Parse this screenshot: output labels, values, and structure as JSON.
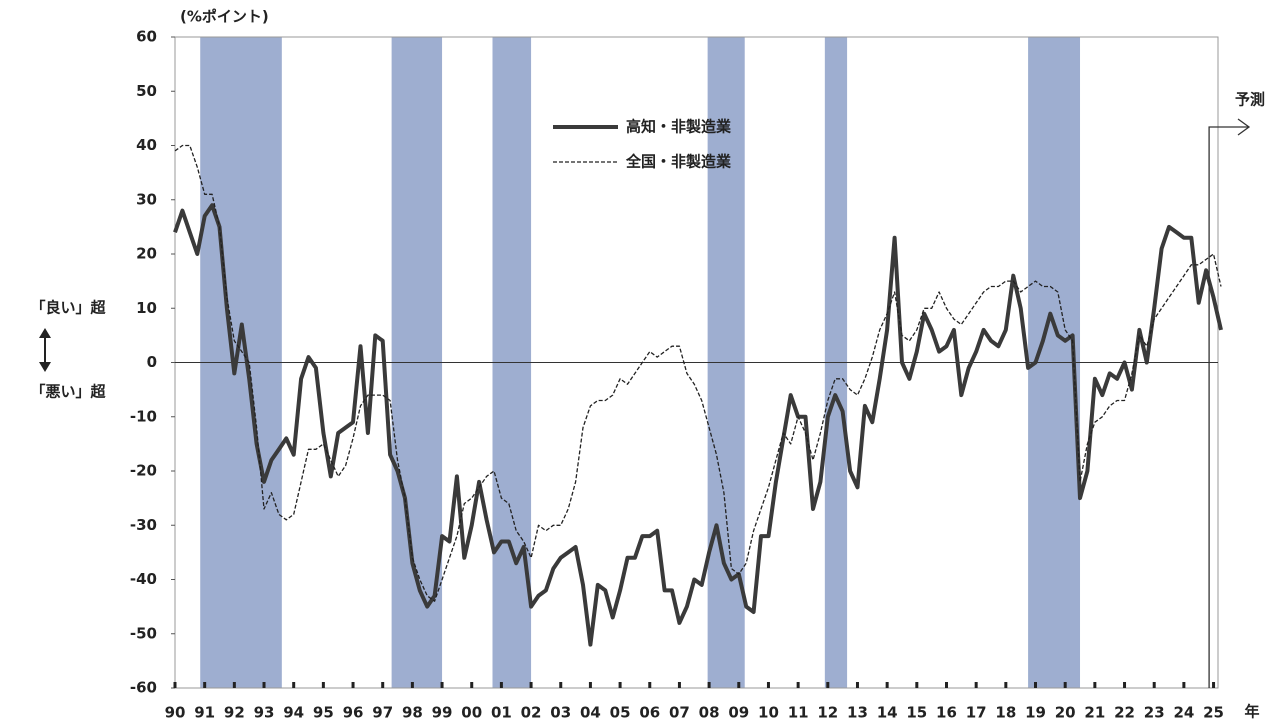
{
  "chart_data": {
    "type": "line",
    "y_unit": "(%ポイント)",
    "upper_label": "「良い」超",
    "lower_label": "「悪い」超",
    "x_unit": "年",
    "forecast": {
      "label": "予測",
      "x": 2024.85
    },
    "xlim": [
      1990,
      2025
    ],
    "xticks": [
      {
        "value": 1990,
        "label": "90"
      },
      {
        "value": 1991,
        "label": "91"
      },
      {
        "value": 1992,
        "label": "92"
      },
      {
        "value": 1993,
        "label": "93"
      },
      {
        "value": 1994,
        "label": "94"
      },
      {
        "value": 1995,
        "label": "95"
      },
      {
        "value": 1996,
        "label": "96"
      },
      {
        "value": 1997,
        "label": "97"
      },
      {
        "value": 1998,
        "label": "98"
      },
      {
        "value": 1999,
        "label": "99"
      },
      {
        "value": 2000,
        "label": "00"
      },
      {
        "value": 2001,
        "label": "01"
      },
      {
        "value": 2002,
        "label": "02"
      },
      {
        "value": 2003,
        "label": "03"
      },
      {
        "value": 2004,
        "label": "04"
      },
      {
        "value": 2005,
        "label": "05"
      },
      {
        "value": 2006,
        "label": "06"
      },
      {
        "value": 2007,
        "label": "07"
      },
      {
        "value": 2008,
        "label": "08"
      },
      {
        "value": 2009,
        "label": "09"
      },
      {
        "value": 2010,
        "label": "10"
      },
      {
        "value": 2011,
        "label": "11"
      },
      {
        "value": 2012,
        "label": "12"
      },
      {
        "value": 2013,
        "label": "13"
      },
      {
        "value": 2014,
        "label": "14"
      },
      {
        "value": 2015,
        "label": "15"
      },
      {
        "value": 2016,
        "label": "16"
      },
      {
        "value": 2017,
        "label": "17"
      },
      {
        "value": 2018,
        "label": "18"
      },
      {
        "value": 2019,
        "label": "19"
      },
      {
        "value": 2020,
        "label": "20"
      },
      {
        "value": 2021,
        "label": "21"
      },
      {
        "value": 2022,
        "label": "22"
      },
      {
        "value": 2023,
        "label": "23"
      },
      {
        "value": 2024,
        "label": "24"
      },
      {
        "value": 2025,
        "label": "25"
      }
    ],
    "ylim": [
      -60,
      60
    ],
    "yticks": [
      60,
      50,
      40,
      30,
      20,
      10,
      0,
      -10,
      -20,
      -30,
      -40,
      -50,
      -60
    ],
    "shaded_periods": [
      [
        1990.85,
        1993.6
      ],
      [
        1997.3,
        1999.0
      ],
      [
        2000.7,
        2002.0
      ],
      [
        2007.95,
        2009.2
      ],
      [
        2011.9,
        2012.65
      ],
      [
        2018.75,
        2020.5
      ]
    ],
    "shade_color": "#9eaed0",
    "x": [
      1990,
      1990.25,
      1990.5,
      1990.75,
      1991,
      1991.25,
      1991.5,
      1991.75,
      1992,
      1992.25,
      1992.5,
      1992.75,
      1993,
      1993.25,
      1993.5,
      1993.75,
      1994,
      1994.25,
      1994.5,
      1994.75,
      1995,
      1995.25,
      1995.5,
      1995.75,
      1996,
      1996.25,
      1996.5,
      1996.75,
      1997,
      1997.25,
      1997.5,
      1997.75,
      1998,
      1998.25,
      1998.5,
      1998.75,
      1999,
      1999.25,
      1999.5,
      1999.75,
      2000,
      2000.25,
      2000.5,
      2000.75,
      2001,
      2001.25,
      2001.5,
      2001.75,
      2002,
      2002.25,
      2002.5,
      2002.75,
      2003,
      2003.25,
      2003.5,
      2003.75,
      2004,
      2004.25,
      2004.5,
      2004.75,
      2005,
      2005.25,
      2005.5,
      2005.75,
      2006,
      2006.25,
      2006.5,
      2006.75,
      2007,
      2007.25,
      2007.5,
      2007.75,
      2008,
      2008.25,
      2008.5,
      2008.75,
      2009,
      2009.25,
      2009.5,
      2009.75,
      2010,
      2010.25,
      2010.5,
      2010.75,
      2011,
      2011.25,
      2011.5,
      2011.75,
      2012,
      2012.25,
      2012.5,
      2012.75,
      2013,
      2013.25,
      2013.5,
      2013.75,
      2014,
      2014.25,
      2014.5,
      2014.75,
      2015,
      2015.25,
      2015.5,
      2015.75,
      2016,
      2016.25,
      2016.5,
      2016.75,
      2017,
      2017.25,
      2017.5,
      2017.75,
      2018,
      2018.25,
      2018.5,
      2018.75,
      2019,
      2019.25,
      2019.5,
      2019.75,
      2020,
      2020.25,
      2020.5,
      2020.75,
      2021,
      2021.25,
      2021.5,
      2021.75,
      2022,
      2022.25,
      2022.5,
      2022.75,
      2023,
      2023.25,
      2023.5,
      2023.75,
      2024,
      2024.25,
      2024.5,
      2024.75,
      2025,
      2025.25
    ],
    "series": [
      {
        "name": "高知・非製造業",
        "color": "#3a3a3a",
        "style": "solid",
        "width": 4,
        "values": [
          24,
          28,
          24,
          20,
          27,
          29,
          25,
          10,
          -2,
          7,
          -3,
          -15,
          -22,
          -18,
          -16,
          -14,
          -17,
          -3,
          1,
          -1,
          -13,
          -21,
          -13,
          -12,
          -11,
          3,
          -13,
          5,
          4,
          -17,
          -20,
          -25,
          -37,
          -42,
          -45,
          -43,
          -32,
          -33,
          -21,
          -36,
          -30,
          -22,
          -29,
          -35,
          -33,
          -33,
          -37,
          -34,
          -45,
          -43,
          -42,
          -38,
          -36,
          -35,
          -34,
          -41,
          -52,
          -41,
          -42,
          -47,
          -42,
          -36,
          -36,
          -32,
          -32,
          -31,
          -42,
          -42,
          -48,
          -45,
          -40,
          -41,
          -35,
          -30,
          -37,
          -40,
          -39,
          -45,
          -46,
          -32,
          -32,
          -22,
          -14,
          -6,
          -10,
          -10,
          -27,
          -22,
          -10,
          -6,
          -9,
          -20,
          -23,
          -8,
          -11,
          -3,
          6,
          23,
          0,
          -3,
          2,
          9,
          6,
          2,
          3,
          6,
          -6,
          -1,
          2,
          6,
          4,
          3,
          6,
          16,
          10,
          -1,
          0,
          4,
          9,
          5,
          4,
          5,
          -25,
          -20,
          -3,
          -6,
          -2,
          -3,
          0,
          -5,
          6,
          0,
          10,
          21,
          25,
          24,
          23,
          23,
          11,
          17,
          12,
          6
        ]
      },
      {
        "name": "全国・非製造業",
        "color": "#222222",
        "style": "dashed",
        "width": 1.3,
        "values": [
          39,
          40,
          40,
          36,
          31,
          31,
          25,
          12,
          4,
          2,
          0,
          -12,
          -27,
          -24,
          -28,
          -29,
          -28,
          -22,
          -16,
          -16,
          -15,
          -18,
          -21,
          -19,
          -14,
          -8,
          -6,
          -6,
          -6,
          -7,
          -18,
          -25,
          -36,
          -40,
          -43,
          -44,
          -40,
          -36,
          -32,
          -26,
          -25,
          -23,
          -21,
          -20,
          -25,
          -26,
          -31,
          -33,
          -36,
          -30,
          -31,
          -30,
          -30,
          -27,
          -22,
          -12,
          -8,
          -7,
          -7,
          -6,
          -3,
          -4,
          -2,
          0,
          2,
          1,
          2,
          3,
          3,
          -2,
          -4,
          -7,
          -12,
          -17,
          -24,
          -38,
          -39,
          -37,
          -31,
          -27,
          -23,
          -18,
          -13,
          -15,
          -10,
          -13,
          -18,
          -13,
          -7,
          -3,
          -3,
          -5,
          -6,
          -3,
          1,
          6,
          9,
          13,
          5,
          4,
          6,
          10,
          10,
          13,
          10,
          8,
          7,
          9,
          11,
          13,
          14,
          14,
          15,
          15,
          13,
          14,
          15,
          14,
          14,
          13,
          6,
          4,
          -22,
          -15,
          -11,
          -10,
          -8,
          -7,
          -7,
          -2,
          5,
          3,
          8,
          10,
          12,
          14,
          16,
          18,
          18,
          19,
          20,
          14
        ]
      }
    ]
  }
}
